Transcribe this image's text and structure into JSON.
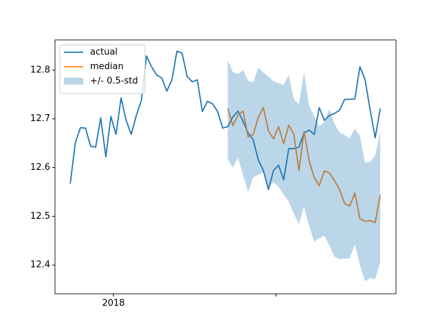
{
  "chart_data": {
    "type": "line",
    "x": [
      0,
      1,
      2,
      3,
      4,
      5,
      6,
      7,
      8,
      9,
      10,
      11,
      12,
      13,
      14,
      15,
      16,
      17,
      18,
      19,
      20,
      21,
      22,
      23,
      24,
      25,
      26,
      27,
      28,
      29,
      30,
      31,
      32,
      33,
      34,
      35,
      36,
      37,
      38,
      39,
      40,
      41,
      42,
      43,
      44,
      45,
      46,
      47,
      48,
      49,
      50,
      51,
      52,
      53,
      54,
      55,
      56,
      57,
      58,
      59,
      60,
      61
    ],
    "series": [
      {
        "name": "actual",
        "color": "#1f77b4",
        "values": [
          12.567,
          12.651,
          12.682,
          12.681,
          12.644,
          12.642,
          12.702,
          12.622,
          12.705,
          12.668,
          12.743,
          12.697,
          12.668,
          12.707,
          12.738,
          12.829,
          12.807,
          12.79,
          12.784,
          12.757,
          12.78,
          12.839,
          12.835,
          12.787,
          12.776,
          12.78,
          12.715,
          12.736,
          12.731,
          12.715,
          12.681,
          12.684,
          12.704,
          12.716,
          12.695,
          12.671,
          12.657,
          12.616,
          12.594,
          12.555,
          12.594,
          12.605,
          12.575,
          12.639,
          12.639,
          12.642,
          12.671,
          12.677,
          12.668,
          12.723,
          12.697,
          12.707,
          12.711,
          12.718,
          12.74,
          12.74,
          12.741,
          12.807,
          12.781,
          12.719,
          12.661,
          12.721
        ]
      },
      {
        "name": "median",
        "color": "#ff7f0e",
        "values": [
          null,
          null,
          null,
          null,
          null,
          null,
          null,
          null,
          null,
          null,
          null,
          null,
          null,
          null,
          null,
          null,
          null,
          null,
          null,
          null,
          null,
          null,
          null,
          null,
          null,
          null,
          null,
          null,
          null,
          null,
          null,
          12.721,
          12.686,
          12.708,
          12.716,
          12.663,
          12.668,
          12.703,
          12.723,
          12.675,
          12.659,
          12.684,
          12.649,
          12.687,
          12.668,
          12.594,
          12.674,
          12.614,
          12.58,
          12.563,
          12.593,
          12.589,
          12.573,
          12.555,
          12.526,
          12.521,
          12.548,
          12.495,
          12.49,
          12.491,
          12.487,
          12.544
        ]
      },
      {
        "name": "+/- 0.5-std",
        "kind": "band",
        "color": "#1f77b4",
        "alpha": 0.3,
        "upper": [
          null,
          null,
          null,
          null,
          null,
          null,
          null,
          null,
          null,
          null,
          null,
          null,
          null,
          null,
          null,
          null,
          null,
          null,
          null,
          null,
          null,
          null,
          null,
          null,
          null,
          null,
          null,
          null,
          null,
          null,
          null,
          12.82,
          12.796,
          12.792,
          12.8,
          12.778,
          12.775,
          12.805,
          12.795,
          12.787,
          12.777,
          12.773,
          12.77,
          12.79,
          12.74,
          12.73,
          12.795,
          12.728,
          12.705,
          12.685,
          12.694,
          12.72,
          12.69,
          12.672,
          12.667,
          12.66,
          12.68,
          12.665,
          12.61,
          12.612,
          12.625,
          12.672
        ],
        "lower": [
          null,
          null,
          null,
          null,
          null,
          null,
          null,
          null,
          null,
          null,
          null,
          null,
          null,
          null,
          null,
          null,
          null,
          null,
          null,
          null,
          null,
          null,
          null,
          null,
          null,
          null,
          null,
          null,
          null,
          null,
          null,
          12.617,
          12.6,
          12.62,
          12.585,
          12.55,
          12.58,
          12.585,
          12.59,
          12.558,
          12.57,
          12.56,
          12.545,
          12.53,
          12.505,
          12.484,
          12.52,
          12.48,
          12.448,
          12.455,
          12.46,
          12.44,
          12.417,
          12.412,
          12.413,
          12.414,
          12.443,
          12.4,
          12.367,
          12.373,
          12.371,
          12.405
        ]
      }
    ],
    "xlim": [
      -3,
      64.1
    ],
    "xticks": [
      {
        "value": 8.5,
        "label": "2018"
      },
      {
        "value": 40.5,
        "label": null
      }
    ],
    "ylim": [
      12.341,
      12.862
    ],
    "yticks": [
      12.4,
      12.5,
      12.6,
      12.7,
      12.8
    ],
    "legend": "upper left"
  }
}
